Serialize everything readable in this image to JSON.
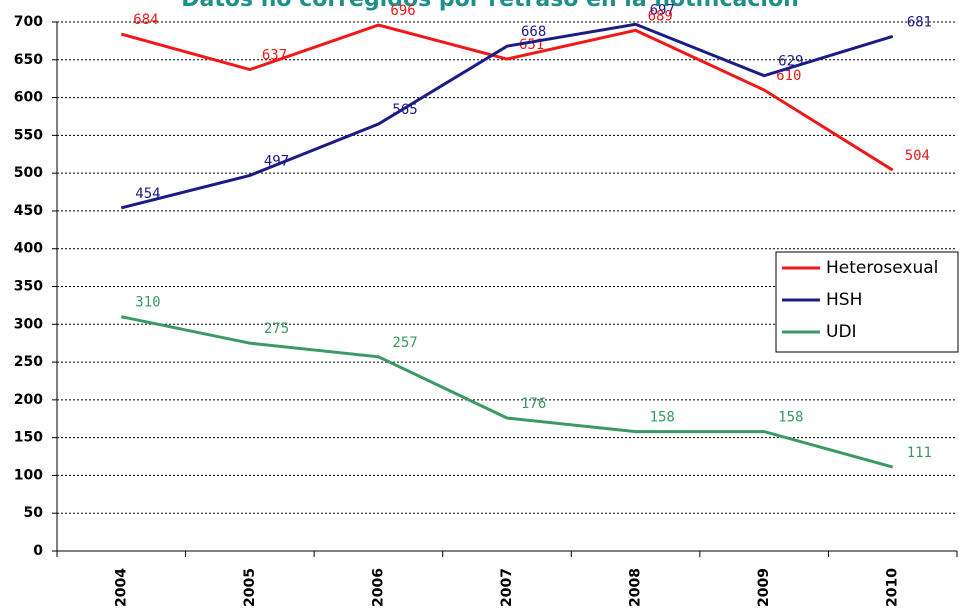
{
  "chart_data": {
    "type": "line",
    "title": "Datos no corregidos por retraso en la notificación",
    "categories": [
      "2004",
      "2005",
      "2006",
      "2007",
      "2008",
      "2009",
      "2010"
    ],
    "series": [
      {
        "name": "Heterosexual",
        "color": "#f01818",
        "values": [
          684,
          637,
          696,
          651,
          689,
          610,
          504
        ]
      },
      {
        "name": "HSH",
        "color": "#1c1c86",
        "values": [
          454,
          497,
          565,
          668,
          697,
          629,
          681
        ]
      },
      {
        "name": "UDI",
        "color": "#3a9a62",
        "values": [
          310,
          275,
          257,
          176,
          158,
          158,
          111
        ]
      }
    ],
    "ylim": [
      0,
      700
    ],
    "yticks": [
      0,
      50,
      100,
      150,
      200,
      250,
      300,
      350,
      400,
      450,
      500,
      550,
      600,
      650,
      700
    ],
    "grid": true,
    "legend": "right"
  }
}
